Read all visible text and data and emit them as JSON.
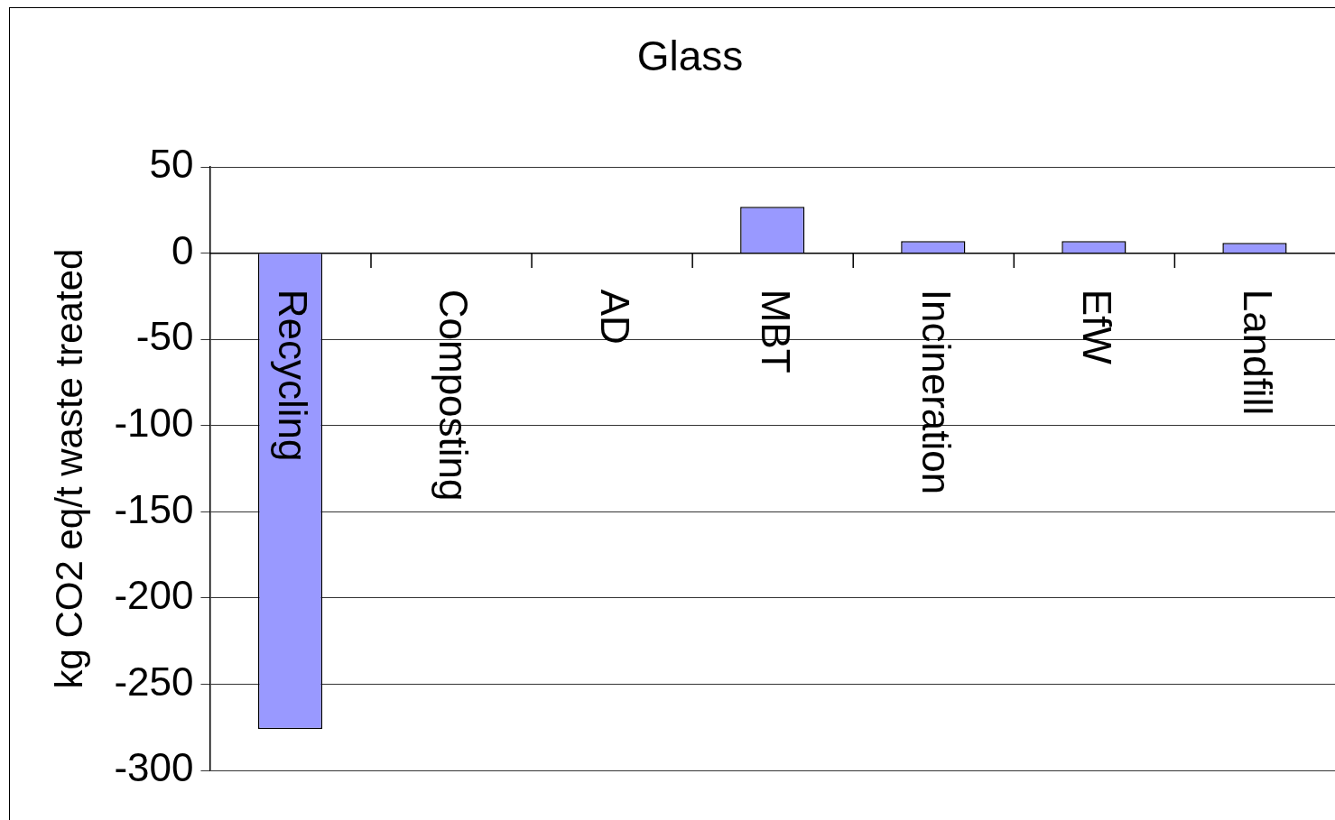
{
  "chart_data": {
    "type": "bar",
    "title": "Glass",
    "ylabel": "kg CO2 eq/t waste treated",
    "categories": [
      "Recycling",
      "Composting",
      "AD",
      "MBT",
      "Incineration",
      "EfW",
      "Landfill"
    ],
    "values": [
      -276,
      0,
      0,
      27,
      7,
      7,
      6
    ],
    "color": "#9999ff",
    "ylim": [
      -300,
      50
    ],
    "yticks": [
      -300,
      -250,
      -200,
      -150,
      -100,
      -50,
      0,
      50
    ],
    "grid": "y",
    "legend": false
  }
}
